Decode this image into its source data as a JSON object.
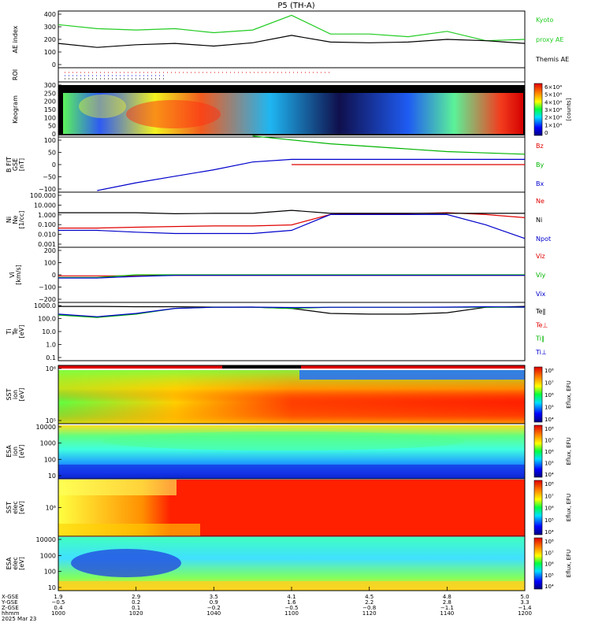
{
  "title": "P5 (TH-A)",
  "colors": {
    "ae_kyoto": "#22cc22",
    "ae_themis": "#000000",
    "red": "#e00000",
    "green": "#00b400",
    "blue": "#0000cc",
    "black": "#000000"
  },
  "panels": [
    {
      "id": "ae",
      "ylabel": [
        "AE index"
      ],
      "yticks": [
        "400",
        "300",
        "200",
        "100",
        "0"
      ],
      "right": [
        {
          "text": "Kyoto",
          "color": "#22cc22"
        },
        {
          "text": "proxy AE",
          "color": "#22cc22"
        },
        {
          "text": "Themis AE",
          "color": "#000000"
        }
      ]
    },
    {
      "id": "roi",
      "ylabel": [
        "ROI"
      ],
      "yticks": [],
      "right": []
    },
    {
      "id": "keogram",
      "ylabel": [
        "Keogram"
      ],
      "yticks": [
        "300",
        "250",
        "200",
        "150",
        "100",
        "50",
        "0"
      ],
      "colorbar": {
        "ticks": [
          "6×10⁴",
          "5×10⁴",
          "4×10⁴",
          "3×10⁴",
          "2×10⁴",
          "1×10⁴",
          "0"
        ],
        "label": "[counts]"
      },
      "right": []
    },
    {
      "id": "bfgm",
      "ylabel": [
        "B FIT",
        "GSE",
        "[nT]"
      ],
      "yticks": [
        "100",
        "50",
        "0",
        "−50",
        "−100"
      ],
      "right": [
        {
          "text": "Bz",
          "color": "#e00000"
        },
        {
          "text": "By",
          "color": "#00b400"
        },
        {
          "text": "Bx",
          "color": "#0000cc"
        }
      ]
    },
    {
      "id": "density",
      "ylabel": [
        "Ni",
        "Ne",
        "[1/cc]"
      ],
      "yticks": [
        "100.000",
        "10.000",
        "1.000",
        "0.100",
        "0.010",
        "0.001"
      ],
      "right": [
        {
          "text": "Ne",
          "color": "#e00000"
        },
        {
          "text": "Ni",
          "color": "#000000"
        },
        {
          "text": "Npot",
          "color": "#0000cc"
        }
      ]
    },
    {
      "id": "velocity",
      "ylabel": [
        "Vi",
        "[km/s]"
      ],
      "yticks": [
        "200",
        "100",
        "0",
        "−100",
        "−200"
      ],
      "right": [
        {
          "text": "Viz",
          "color": "#e00000"
        },
        {
          "text": "Viy",
          "color": "#00b400"
        },
        {
          "text": "Vix",
          "color": "#0000cc"
        }
      ]
    },
    {
      "id": "temp",
      "ylabel": [
        "Ti",
        "Te",
        "[eV]"
      ],
      "yticks": [
        "1000.0",
        "100.0",
        "10.0",
        "1.0",
        "0.1"
      ],
      "right": [
        {
          "text": "Te‖",
          "color": "#000000"
        },
        {
          "text": "Te⊥",
          "color": "#e00000"
        },
        {
          "text": "Ti‖",
          "color": "#00b400"
        },
        {
          "text": "Ti⊥",
          "color": "#0000cc"
        }
      ]
    },
    {
      "id": "sst_i",
      "ylabel": [
        "SST",
        "ion",
        "[eV]"
      ],
      "yticks": [
        "10⁶",
        "10⁵"
      ],
      "colorbar": {
        "ticks": [
          "10⁸",
          "10⁷",
          "10⁶",
          "10⁵",
          "10⁴"
        ],
        "label": "Eflux, EFU"
      },
      "right": []
    },
    {
      "id": "esa_i",
      "ylabel": [
        "ESA",
        "ion",
        "[eV]"
      ],
      "yticks": [
        "10000",
        "1000",
        "100",
        "10"
      ],
      "colorbar": {
        "ticks": [
          "10⁸",
          "10⁷",
          "10⁶",
          "10⁵",
          "10⁴"
        ],
        "label": "Eflux, EFU"
      },
      "right": []
    },
    {
      "id": "sst_e",
      "ylabel": [
        "SST",
        "elec",
        "[eV]"
      ],
      "yticks": [
        "10⁶"
      ],
      "colorbar": {
        "ticks": [
          "10⁸",
          "10⁷",
          "10⁶",
          "10⁵",
          "10⁴"
        ],
        "label": "Eflux, EFU"
      },
      "right": []
    },
    {
      "id": "esa_e",
      "ylabel": [
        "ESA",
        "elec",
        "[eV]"
      ],
      "yticks": [
        "10000",
        "1000",
        "100",
        "10"
      ],
      "colorbar": {
        "ticks": [
          "10⁸",
          "10⁷",
          "10⁶",
          "10⁵",
          "10⁴"
        ],
        "label": "Eflux, EFU"
      },
      "right": []
    }
  ],
  "xaxis": {
    "row_labels": [
      "X-GSE",
      "Y-GSE",
      "Z-GSE",
      "hhmm",
      "2025 Mar 23"
    ],
    "columns": [
      {
        "x": "1.9",
        "y": "−0.5",
        "z": "0.4",
        "t": "1000"
      },
      {
        "x": "2.9",
        "y": "0.2",
        "z": "0.1",
        "t": "1020"
      },
      {
        "x": "3.5",
        "y": "0.9",
        "z": "−0.2",
        "t": "1040"
      },
      {
        "x": "4.1",
        "y": "1.6",
        "z": "−0.5",
        "t": "1100"
      },
      {
        "x": "4.5",
        "y": "2.2",
        "z": "−0.8",
        "t": "1120"
      },
      {
        "x": "4.8",
        "y": "2.8",
        "z": "−1.1",
        "t": "1140"
      },
      {
        "x": "5.0",
        "y": "3.3",
        "z": "−1.4",
        "t": "1200"
      }
    ]
  },
  "chart_data": [
    {
      "type": "line",
      "title": "AE index",
      "x": [
        "1000",
        "1010",
        "1020",
        "1030",
        "1040",
        "1050",
        "1100",
        "1110",
        "1120",
        "1130",
        "1140",
        "1150",
        "1200"
      ],
      "series": [
        {
          "name": "Kyoto proxy AE",
          "values": [
            310,
            280,
            270,
            280,
            250,
            270,
            380,
            240,
            240,
            220,
            260,
            190,
            200
          ]
        },
        {
          "name": "Themis AE",
          "values": [
            170,
            140,
            160,
            170,
            150,
            175,
            230,
            180,
            175,
            180,
            200,
            190,
            170
          ]
        }
      ],
      "ylim": [
        0,
        400
      ]
    },
    {
      "type": "line",
      "title": "B FIT GSE",
      "x": [
        "1000",
        "1010",
        "1020",
        "1030",
        "1040",
        "1050",
        "1100",
        "1110",
        "1120",
        "1130",
        "1140",
        "1150",
        "1200"
      ],
      "series": [
        {
          "name": "Bz",
          "values": [
            null,
            null,
            null,
            null,
            null,
            null,
            0,
            0,
            0,
            0,
            0,
            0,
            0
          ]
        },
        {
          "name": "By",
          "values": [
            null,
            null,
            null,
            null,
            null,
            110,
            95,
            80,
            70,
            60,
            50,
            45,
            40
          ]
        },
        {
          "name": "Bx",
          "values": [
            null,
            -100,
            -70,
            -45,
            -20,
            10,
            20,
            20,
            20,
            20,
            20,
            20,
            20
          ]
        }
      ],
      "ylim": [
        -100,
        100
      ]
    },
    {
      "type": "line",
      "title": "Ni Ne",
      "x": [
        "1000",
        "1010",
        "1020",
        "1030",
        "1040",
        "1050",
        "1100",
        "1110",
        "1120",
        "1130",
        "1140",
        "1150",
        "1200"
      ],
      "series": [
        {
          "name": "Ne",
          "values": [
            0.05,
            0.05,
            0.06,
            0.07,
            0.08,
            0.08,
            0.1,
            1.0,
            1.2,
            1.2,
            1.5,
            1.0,
            0.5
          ]
        },
        {
          "name": "Ni",
          "values": [
            1.5,
            1.5,
            1.5,
            1.2,
            1.3,
            1.3,
            2.5,
            1.3,
            1.3,
            1.3,
            1.3,
            1.3,
            1.3
          ]
        },
        {
          "name": "Npot",
          "values": [
            0.03,
            0.03,
            0.02,
            0.015,
            0.015,
            0.015,
            0.03,
            1.0,
            1.0,
            1.0,
            1.0,
            0.1,
            0.005
          ]
        }
      ],
      "ylim": [
        0.001,
        100
      ]
    },
    {
      "type": "line",
      "title": "Vi",
      "x": [
        "1000",
        "1010",
        "1020",
        "1030",
        "1040",
        "1050",
        "1100",
        "1110",
        "1120",
        "1130",
        "1140",
        "1150",
        "1200"
      ],
      "series": [
        {
          "name": "Viz",
          "values": [
            -10,
            -10,
            -10,
            -5,
            -5,
            -5,
            -5,
            -5,
            -5,
            -5,
            -5,
            -5,
            -5
          ]
        },
        {
          "name": "Viy",
          "values": [
            -25,
            -25,
            0,
            0,
            0,
            0,
            0,
            0,
            0,
            0,
            0,
            0,
            0
          ]
        },
        {
          "name": "Vix",
          "values": [
            -30,
            -30,
            -15,
            -5,
            -5,
            -5,
            -5,
            -5,
            -5,
            -5,
            -5,
            -5,
            -5
          ]
        }
      ],
      "ylim": [
        -250,
        250
      ]
    },
    {
      "type": "line",
      "title": "Ti Te",
      "x": [
        "1000",
        "1010",
        "1020",
        "1030",
        "1040",
        "1050",
        "1100",
        "1110",
        "1120",
        "1130",
        "1140",
        "1150",
        "1200"
      ],
      "series": [
        {
          "name": "Te‖",
          "values": [
            3000,
            3000,
            2800,
            2800,
            2600,
            2600,
            2000,
            700,
            600,
            600,
            800,
            2500,
            3000
          ]
        },
        {
          "name": "Ti‖",
          "values": [
            500,
            300,
            600,
            2000,
            2500,
            2500,
            2000,
            2500,
            2500,
            2500,
            2500,
            2500,
            2500
          ]
        },
        {
          "name": "Ti⊥",
          "values": [
            600,
            350,
            700,
            2000,
            2500,
            2600,
            2400,
            2500,
            2500,
            2500,
            2600,
            2800,
            2600
          ]
        }
      ],
      "ylim": [
        0.05,
        5000
      ]
    }
  ]
}
